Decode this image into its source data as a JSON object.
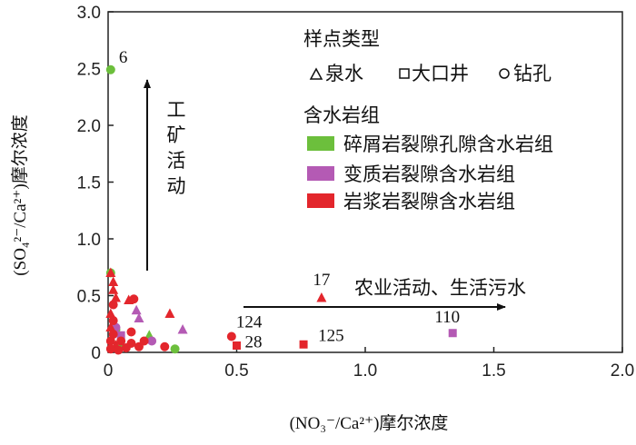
{
  "chart_data": {
    "type": "scatter",
    "xlabel": "(NO₃⁻/Ca²⁺)摩尔浓度",
    "ylabel": "(SO₄²⁻/Ca²⁺)摩尔浓度",
    "xlim": [
      0,
      2.0
    ],
    "ylim": [
      0,
      3.0
    ],
    "x_ticks": [
      "0",
      "0.5",
      "1.0",
      "1.5",
      "2.0"
    ],
    "y_ticks": [
      "0",
      "0.5",
      "1.0",
      "1.5",
      "2.0",
      "2.5",
      "3.0"
    ],
    "legend": {
      "type_title": "样点类型",
      "types": [
        {
          "symbol": "triangle",
          "label": "泉水"
        },
        {
          "symbol": "square",
          "label": "大口井"
        },
        {
          "symbol": "circle",
          "label": "钻孔"
        }
      ],
      "group_title": "含水岩组",
      "groups": [
        {
          "label": "碎屑岩裂隙孔隙含水岩组",
          "color": "#6cbf3c"
        },
        {
          "label": "变质岩裂隙含水岩组",
          "color": "#b45ab4"
        },
        {
          "label": "岩浆岩裂隙含水岩组",
          "color": "#e3262c"
        }
      ]
    },
    "annotations": {
      "vertical_arrow_label": "工矿活动",
      "horizontal_arrow_label": "农业活动、生活污水"
    },
    "series": [
      {
        "name": "碎屑岩裂隙孔隙含水岩组",
        "color": "#6cbf3c",
        "points": [
          {
            "x": 0.01,
            "y": 2.49,
            "shape": "circle",
            "label": "6"
          },
          {
            "x": 0.01,
            "y": 0.7,
            "shape": "circle"
          },
          {
            "x": 0.03,
            "y": 0.2,
            "shape": "circle"
          },
          {
            "x": 0.05,
            "y": 0.05,
            "shape": "circle"
          },
          {
            "x": 0.16,
            "y": 0.15,
            "shape": "triangle"
          },
          {
            "x": 0.26,
            "y": 0.03,
            "shape": "circle"
          }
        ]
      },
      {
        "name": "变质岩裂隙含水岩组",
        "color": "#b45ab4",
        "points": [
          {
            "x": 0.03,
            "y": 0.22,
            "shape": "circle"
          },
          {
            "x": 0.05,
            "y": 0.15,
            "shape": "square"
          },
          {
            "x": 0.11,
            "y": 0.37,
            "shape": "triangle"
          },
          {
            "x": 0.12,
            "y": 0.3,
            "shape": "triangle"
          },
          {
            "x": 0.17,
            "y": 0.1,
            "shape": "circle"
          },
          {
            "x": 0.29,
            "y": 0.2,
            "shape": "triangle"
          },
          {
            "x": 1.34,
            "y": 0.17,
            "shape": "square",
            "label": "110"
          }
        ]
      },
      {
        "name": "岩浆岩裂隙含水岩组",
        "color": "#e3262c",
        "points": [
          {
            "x": 0.01,
            "y": 0.7,
            "shape": "triangle"
          },
          {
            "x": 0.02,
            "y": 0.62,
            "shape": "triangle"
          },
          {
            "x": 0.02,
            "y": 0.55,
            "shape": "triangle"
          },
          {
            "x": 0.03,
            "y": 0.48,
            "shape": "triangle"
          },
          {
            "x": 0.02,
            "y": 0.42,
            "shape": "circle"
          },
          {
            "x": 0.01,
            "y": 0.34,
            "shape": "triangle"
          },
          {
            "x": 0.02,
            "y": 0.28,
            "shape": "circle"
          },
          {
            "x": 0.01,
            "y": 0.22,
            "shape": "triangle"
          },
          {
            "x": 0.02,
            "y": 0.16,
            "shape": "circle"
          },
          {
            "x": 0.01,
            "y": 0.1,
            "shape": "circle"
          },
          {
            "x": 0.03,
            "y": 0.06,
            "shape": "triangle"
          },
          {
            "x": 0.01,
            "y": 0.03,
            "shape": "circle"
          },
          {
            "x": 0.04,
            "y": 0.02,
            "shape": "circle"
          },
          {
            "x": 0.05,
            "y": 0.1,
            "shape": "circle"
          },
          {
            "x": 0.07,
            "y": 0.04,
            "shape": "circle"
          },
          {
            "x": 0.08,
            "y": 0.46,
            "shape": "triangle"
          },
          {
            "x": 0.09,
            "y": 0.18,
            "shape": "circle"
          },
          {
            "x": 0.1,
            "y": 0.47,
            "shape": "circle"
          },
          {
            "x": 0.09,
            "y": 0.08,
            "shape": "circle"
          },
          {
            "x": 0.12,
            "y": 0.05,
            "shape": "circle"
          },
          {
            "x": 0.14,
            "y": 0.1,
            "shape": "circle"
          },
          {
            "x": 0.24,
            "y": 0.34,
            "shape": "triangle"
          },
          {
            "x": 0.22,
            "y": 0.05,
            "shape": "circle"
          },
          {
            "x": 0.48,
            "y": 0.14,
            "shape": "circle",
            "label": "124"
          },
          {
            "x": 0.5,
            "y": 0.06,
            "shape": "square",
            "label": "28"
          },
          {
            "x": 0.76,
            "y": 0.07,
            "shape": "square",
            "label": "125"
          },
          {
            "x": 0.83,
            "y": 0.48,
            "shape": "triangle",
            "label": "17"
          }
        ]
      }
    ]
  }
}
